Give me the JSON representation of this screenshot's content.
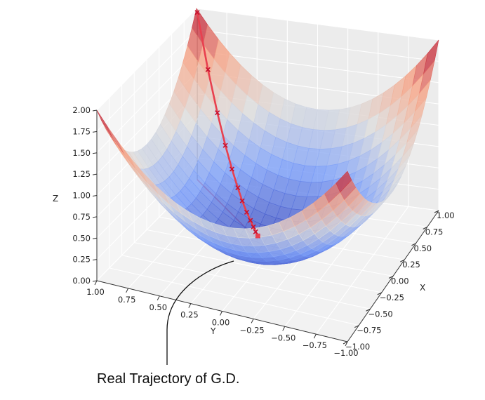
{
  "chart_data": {
    "type": "surface",
    "function": "z = x^2 + y^2",
    "xlabel": "X",
    "ylabel": "Y",
    "zlabel": "Z",
    "xlim": [
      -1.0,
      1.0
    ],
    "ylim": [
      -1.0,
      1.0
    ],
    "zlim": [
      0.0,
      2.0
    ],
    "x_ticks": [
      "1.00",
      "0.75",
      "0.50",
      "0.25",
      "0.00",
      "−0.25",
      "−0.50",
      "−0.75",
      "−1.00"
    ],
    "y_ticks": [
      "1.00",
      "0.75",
      "0.50",
      "0.25",
      "0.00",
      "−0.25",
      "−0.50",
      "−0.75",
      "−1.00"
    ],
    "z_ticks": [
      "2.00",
      "1.75",
      "1.50",
      "1.25",
      "1.00",
      "0.75",
      "0.50",
      "0.25",
      "0.00"
    ],
    "colormap": "coolwarm",
    "grid": true,
    "trajectory": {
      "color": "#e8404f",
      "marker": "x",
      "points": [
        {
          "x": 0.99,
          "y": 0.99,
          "z": 1.96
        },
        {
          "x": 0.84,
          "y": 0.84,
          "z": 1.41
        },
        {
          "x": 0.71,
          "y": 0.71,
          "z": 1.01
        },
        {
          "x": 0.6,
          "y": 0.6,
          "z": 0.72
        },
        {
          "x": 0.51,
          "y": 0.51,
          "z": 0.52
        },
        {
          "x": 0.43,
          "y": 0.43,
          "z": 0.37
        },
        {
          "x": 0.37,
          "y": 0.37,
          "z": 0.27
        },
        {
          "x": 0.31,
          "y": 0.31,
          "z": 0.19
        },
        {
          "x": 0.26,
          "y": 0.26,
          "z": 0.14
        },
        {
          "x": 0.22,
          "y": 0.22,
          "z": 0.1
        },
        {
          "x": 0.19,
          "y": 0.19,
          "z": 0.07
        },
        {
          "x": 0.16,
          "y": 0.16,
          "z": 0.05
        }
      ]
    },
    "annotation": "Real Trajectory of G.D."
  }
}
